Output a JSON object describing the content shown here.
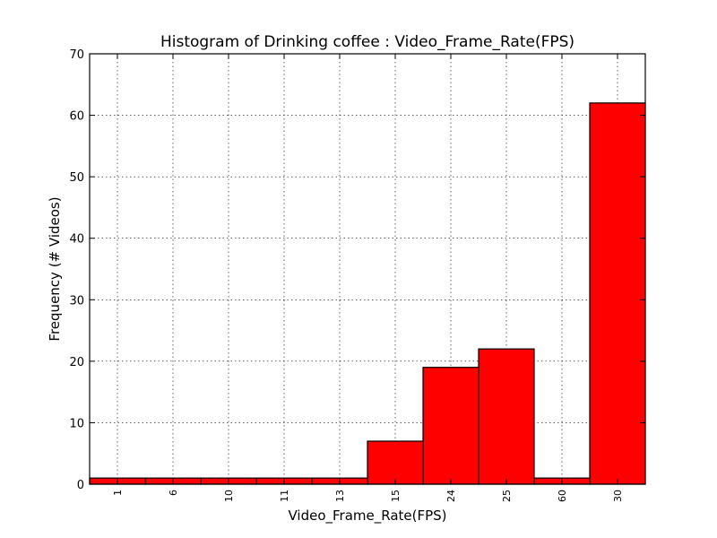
{
  "chart_data": {
    "type": "bar",
    "title": "Histogram of Drinking coffee : Video_Frame_Rate(FPS)",
    "xlabel": "Video_Frame_Rate(FPS)",
    "ylabel": "Frequency (# Videos)",
    "categories": [
      "1",
      "6",
      "10",
      "11",
      "13",
      "15",
      "24",
      "25",
      "60",
      "30"
    ],
    "values": [
      1,
      1,
      1,
      1,
      1,
      7,
      19,
      22,
      1,
      62
    ],
    "ylim": [
      0,
      70
    ],
    "yticks": [
      0,
      10,
      20,
      30,
      40,
      50,
      60,
      70
    ],
    "grid": true,
    "bar_color": "#ff0000",
    "edge_color": "#000000"
  }
}
